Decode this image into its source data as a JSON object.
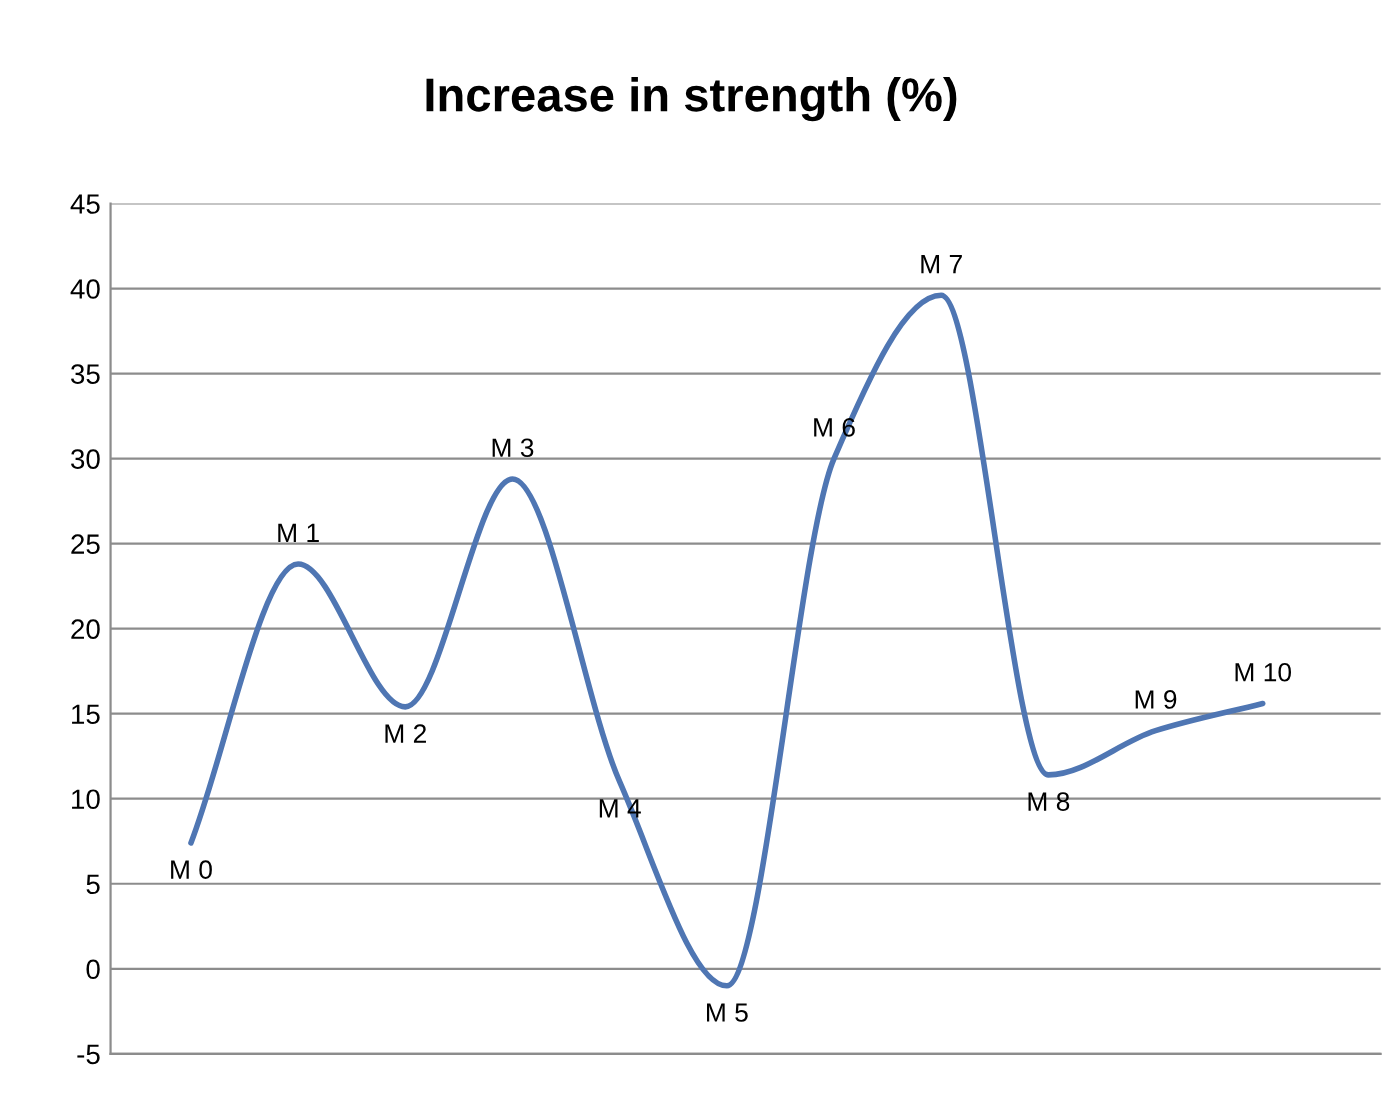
{
  "chart_data": {
    "type": "line",
    "title": "Increase in strength (%)",
    "categories": [
      "M 0",
      "M 1",
      "M 2",
      "M 3",
      "M 4",
      "M 5",
      "M 6",
      "M 7",
      "M 8",
      "M 9",
      "M 10"
    ],
    "series": [
      {
        "color": "#4f76b3",
        "values": [
          7.4,
          23.8,
          15.4,
          28.8,
          11,
          -1,
          30,
          39.6,
          11.4,
          14,
          15.6
        ]
      }
    ],
    "ylim": [
      -5,
      45
    ],
    "yticks": [
      -5,
      0,
      5,
      10,
      15,
      20,
      25,
      30,
      35,
      40,
      45
    ],
    "grid": "y",
    "legend": false,
    "marker": "none",
    "line_style": "solid",
    "tick_labels": "y"
  }
}
